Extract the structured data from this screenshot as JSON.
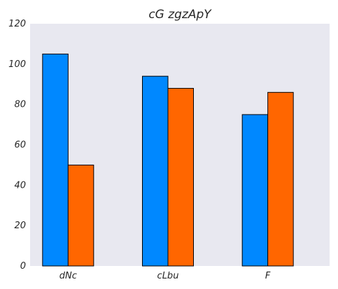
{
  "chart_data": {
    "type": "bar",
    "title": "cG zgzApY",
    "xlabel": "",
    "ylabel": "",
    "categories": [
      "dNc",
      "cLbu",
      "F"
    ],
    "series": [
      {
        "values": [
          105,
          94,
          75
        ],
        "color": "#0088ff"
      },
      {
        "values": [
          50,
          88,
          86
        ],
        "color": "#ff6600"
      }
    ],
    "ylim": [
      0,
      120
    ],
    "yticks": [
      "0",
      "20",
      "40",
      "60",
      "80",
      "100",
      "120"
    ],
    "plot_background": "#e8e8f0",
    "grid": false,
    "legend": "none"
  }
}
